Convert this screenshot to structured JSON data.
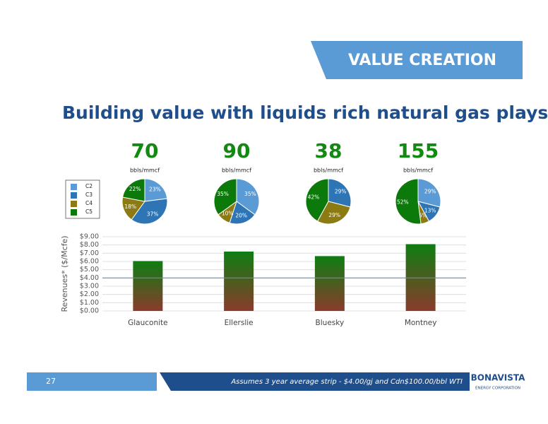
{
  "header": {
    "banner": "VALUE CREATION",
    "title": "Building value with liquids rich natural gas plays:"
  },
  "footer": {
    "page": "27",
    "note": "Assumes 3 year average strip - $4.00/gj and Cdn$100.00/bbl WTI",
    "logo": "BONAVISTA",
    "logo_sub": "ENERGY CORPORATION"
  },
  "chart_data": [
    {
      "type": "pie",
      "title": "70",
      "subtitle": "bbls/mmcf",
      "labels": [
        "C2",
        "C3",
        "C4",
        "C5"
      ],
      "colors": [
        "#5b9bd5",
        "#2e75b6",
        "#8c7a12",
        "#0b7a0b"
      ],
      "values": [
        23,
        37,
        18,
        22
      ],
      "value_labels": [
        "23%",
        "37%",
        "18%",
        "22%"
      ]
    },
    {
      "type": "pie",
      "title": "90",
      "subtitle": "bbls/mmcf",
      "labels": [
        "C2",
        "C3",
        "C4",
        "C5"
      ],
      "colors": [
        "#5b9bd5",
        "#2e75b6",
        "#8c7a12",
        "#0b7a0b"
      ],
      "values": [
        35,
        20,
        10,
        35
      ],
      "value_labels": [
        "35%",
        "20%",
        "10%",
        "35%"
      ]
    },
    {
      "type": "pie",
      "title": "38",
      "subtitle": "bbls/mmcf",
      "labels": [
        "C2",
        "C3",
        "C4",
        "C5"
      ],
      "colors": [
        "#5b9bd5",
        "#2e75b6",
        "#8c7a12",
        "#0b7a0b"
      ],
      "values": [
        0,
        29,
        29,
        42
      ],
      "value_labels": [
        null,
        "29%",
        "29%",
        "42%"
      ]
    },
    {
      "type": "pie",
      "title": "155",
      "subtitle": "bbls/mmcf",
      "labels": [
        "C2",
        "C3",
        "C4",
        "C5"
      ],
      "colors": [
        "#5b9bd5",
        "#2e75b6",
        "#8c7a12",
        "#0b7a0b"
      ],
      "values": [
        29,
        13,
        6,
        52
      ],
      "value_labels": [
        "29%",
        "13%",
        "6%",
        "52%"
      ]
    },
    {
      "type": "bar",
      "ylabel": "Revenues* ($/Mcfe)",
      "categories": [
        "Glauconite",
        "Ellerslie",
        "Bluesky",
        "Montney"
      ],
      "values": [
        6.05,
        7.2,
        6.65,
        8.1
      ],
      "gradient": [
        "#0e7d12",
        "#8a3b2c"
      ],
      "ylim": [
        0,
        9
      ],
      "yticks": [
        {
          "value": 0,
          "label": "$0.00"
        },
        {
          "value": 1,
          "label": "$1.00"
        },
        {
          "value": 2,
          "label": "$2.00"
        },
        {
          "value": 3,
          "label": "$3.00"
        },
        {
          "value": 4,
          "label": "$4.00"
        },
        {
          "value": 5,
          "label": "$5.00"
        },
        {
          "value": 6,
          "label": "$6.00"
        },
        {
          "value": 7,
          "label": "$7.00"
        },
        {
          "value": 8,
          "label": "$8.00"
        },
        {
          "value": 9,
          "label": "$9.00"
        }
      ],
      "grid": true,
      "reference_line": 4,
      "reference_color": "#5b8fc7"
    }
  ]
}
